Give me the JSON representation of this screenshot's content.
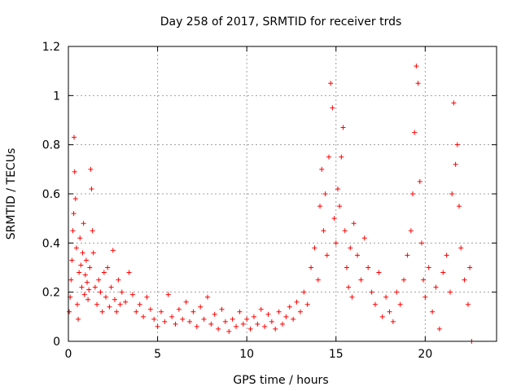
{
  "chart_data": {
    "type": "scatter",
    "title": "Day 258 of 2017, SRMTID for receiver trds",
    "xlabel": "GPS time / hours",
    "ylabel": "SRMTID / TECUs",
    "xlim": [
      0,
      24
    ],
    "ylim": [
      0,
      1.2
    ],
    "xticks": [
      0,
      5,
      10,
      15,
      20
    ],
    "yticks": [
      0,
      0.2,
      0.4,
      0.6,
      0.8,
      1,
      1.2
    ],
    "xtick_labels": [
      "0",
      "5",
      "10",
      "15",
      "20"
    ],
    "ytick_labels": [
      "0",
      "0.2",
      "0.4",
      "0.6",
      "0.8",
      "1",
      "1.2"
    ],
    "grid": true,
    "marker": "plus",
    "color": "#ff0000",
    "series": [
      {
        "name": "SRMTID",
        "points": [
          [
            0.05,
            0.12
          ],
          [
            0.1,
            0.18
          ],
          [
            0.15,
            0.25
          ],
          [
            0.2,
            0.33
          ],
          [
            0.25,
            0.45
          ],
          [
            0.3,
            0.52
          ],
          [
            0.32,
            0.83
          ],
          [
            0.35,
            0.69
          ],
          [
            0.4,
            0.58
          ],
          [
            0.45,
            0.38
          ],
          [
            0.5,
            0.15
          ],
          [
            0.55,
            0.09
          ],
          [
            0.6,
            0.28
          ],
          [
            0.65,
            0.42
          ],
          [
            0.7,
            0.31
          ],
          [
            0.75,
            0.22
          ],
          [
            0.8,
            0.36
          ],
          [
            0.85,
            0.48
          ],
          [
            0.9,
            0.19
          ],
          [
            0.95,
            0.27
          ],
          [
            1.0,
            0.33
          ],
          [
            1.05,
            0.24
          ],
          [
            1.1,
            0.17
          ],
          [
            1.15,
            0.21
          ],
          [
            1.2,
            0.3
          ],
          [
            1.25,
            0.7
          ],
          [
            1.3,
            0.62
          ],
          [
            1.35,
            0.45
          ],
          [
            1.4,
            0.36
          ],
          [
            1.5,
            0.22
          ],
          [
            1.6,
            0.15
          ],
          [
            1.7,
            0.25
          ],
          [
            1.8,
            0.2
          ],
          [
            1.9,
            0.12
          ],
          [
            2.0,
            0.28
          ],
          [
            2.1,
            0.18
          ],
          [
            2.2,
            0.3
          ],
          [
            2.3,
            0.14
          ],
          [
            2.4,
            0.22
          ],
          [
            2.5,
            0.37
          ],
          [
            2.6,
            0.17
          ],
          [
            2.7,
            0.12
          ],
          [
            2.8,
            0.25
          ],
          [
            2.9,
            0.15
          ],
          [
            3.0,
            0.2
          ],
          [
            3.2,
            0.16
          ],
          [
            3.4,
            0.28
          ],
          [
            3.6,
            0.19
          ],
          [
            3.8,
            0.12
          ],
          [
            4.0,
            0.15
          ],
          [
            4.2,
            0.1
          ],
          [
            4.4,
            0.18
          ],
          [
            4.6,
            0.13
          ],
          [
            4.8,
            0.09
          ],
          [
            5.0,
            0.06
          ],
          [
            5.2,
            0.12
          ],
          [
            5.4,
            0.08
          ],
          [
            5.6,
            0.19
          ],
          [
            5.8,
            0.1
          ],
          [
            6.0,
            0.07
          ],
          [
            6.2,
            0.13
          ],
          [
            6.4,
            0.09
          ],
          [
            6.6,
            0.16
          ],
          [
            6.8,
            0.08
          ],
          [
            7.0,
            0.12
          ],
          [
            7.2,
            0.06
          ],
          [
            7.4,
            0.14
          ],
          [
            7.6,
            0.09
          ],
          [
            7.8,
            0.18
          ],
          [
            8.0,
            0.07
          ],
          [
            8.2,
            0.11
          ],
          [
            8.4,
            0.05
          ],
          [
            8.6,
            0.13
          ],
          [
            8.8,
            0.08
          ],
          [
            9.0,
            0.04
          ],
          [
            9.2,
            0.09
          ],
          [
            9.4,
            0.06
          ],
          [
            9.6,
            0.12
          ],
          [
            9.8,
            0.07
          ],
          [
            10.0,
            0.09
          ],
          [
            10.2,
            0.05
          ],
          [
            10.4,
            0.1
          ],
          [
            10.6,
            0.07
          ],
          [
            10.8,
            0.13
          ],
          [
            11.0,
            0.06
          ],
          [
            11.2,
            0.11
          ],
          [
            11.4,
            0.08
          ],
          [
            11.6,
            0.05
          ],
          [
            11.8,
            0.12
          ],
          [
            12.0,
            0.07
          ],
          [
            12.2,
            0.1
          ],
          [
            12.4,
            0.14
          ],
          [
            12.6,
            0.09
          ],
          [
            12.8,
            0.16
          ],
          [
            13.0,
            0.12
          ],
          [
            13.2,
            0.2
          ],
          [
            13.4,
            0.15
          ],
          [
            13.6,
            0.3
          ],
          [
            13.8,
            0.38
          ],
          [
            14.0,
            0.25
          ],
          [
            14.1,
            0.55
          ],
          [
            14.2,
            0.7
          ],
          [
            14.3,
            0.45
          ],
          [
            14.4,
            0.6
          ],
          [
            14.5,
            0.35
          ],
          [
            14.6,
            0.75
          ],
          [
            14.7,
            1.05
          ],
          [
            14.8,
            0.95
          ],
          [
            14.9,
            0.5
          ],
          [
            15.0,
            0.4
          ],
          [
            15.1,
            0.62
          ],
          [
            15.2,
            0.55
          ],
          [
            15.3,
            0.75
          ],
          [
            15.4,
            0.87
          ],
          [
            15.5,
            0.45
          ],
          [
            15.6,
            0.3
          ],
          [
            15.7,
            0.22
          ],
          [
            15.8,
            0.38
          ],
          [
            15.9,
            0.18
          ],
          [
            16.0,
            0.48
          ],
          [
            16.2,
            0.35
          ],
          [
            16.4,
            0.25
          ],
          [
            16.6,
            0.42
          ],
          [
            16.8,
            0.3
          ],
          [
            17.0,
            0.2
          ],
          [
            17.2,
            0.15
          ],
          [
            17.4,
            0.28
          ],
          [
            17.6,
            0.1
          ],
          [
            17.8,
            0.18
          ],
          [
            18.0,
            0.12
          ],
          [
            18.2,
            0.08
          ],
          [
            18.4,
            0.2
          ],
          [
            18.6,
            0.15
          ],
          [
            18.8,
            0.25
          ],
          [
            19.0,
            0.35
          ],
          [
            19.2,
            0.45
          ],
          [
            19.3,
            0.6
          ],
          [
            19.4,
            0.85
          ],
          [
            19.5,
            1.12
          ],
          [
            19.6,
            1.05
          ],
          [
            19.7,
            0.65
          ],
          [
            19.8,
            0.4
          ],
          [
            19.9,
            0.25
          ],
          [
            20.0,
            0.18
          ],
          [
            20.2,
            0.3
          ],
          [
            20.4,
            0.12
          ],
          [
            20.6,
            0.22
          ],
          [
            20.8,
            0.05
          ],
          [
            21.0,
            0.28
          ],
          [
            21.2,
            0.35
          ],
          [
            21.4,
            0.2
          ],
          [
            21.5,
            0.6
          ],
          [
            21.6,
            0.97
          ],
          [
            21.7,
            0.72
          ],
          [
            21.8,
            0.8
          ],
          [
            21.9,
            0.55
          ],
          [
            22.0,
            0.38
          ],
          [
            22.2,
            0.25
          ],
          [
            22.4,
            0.15
          ],
          [
            22.5,
            0.3
          ],
          [
            22.6,
            0.0
          ]
        ]
      }
    ]
  }
}
